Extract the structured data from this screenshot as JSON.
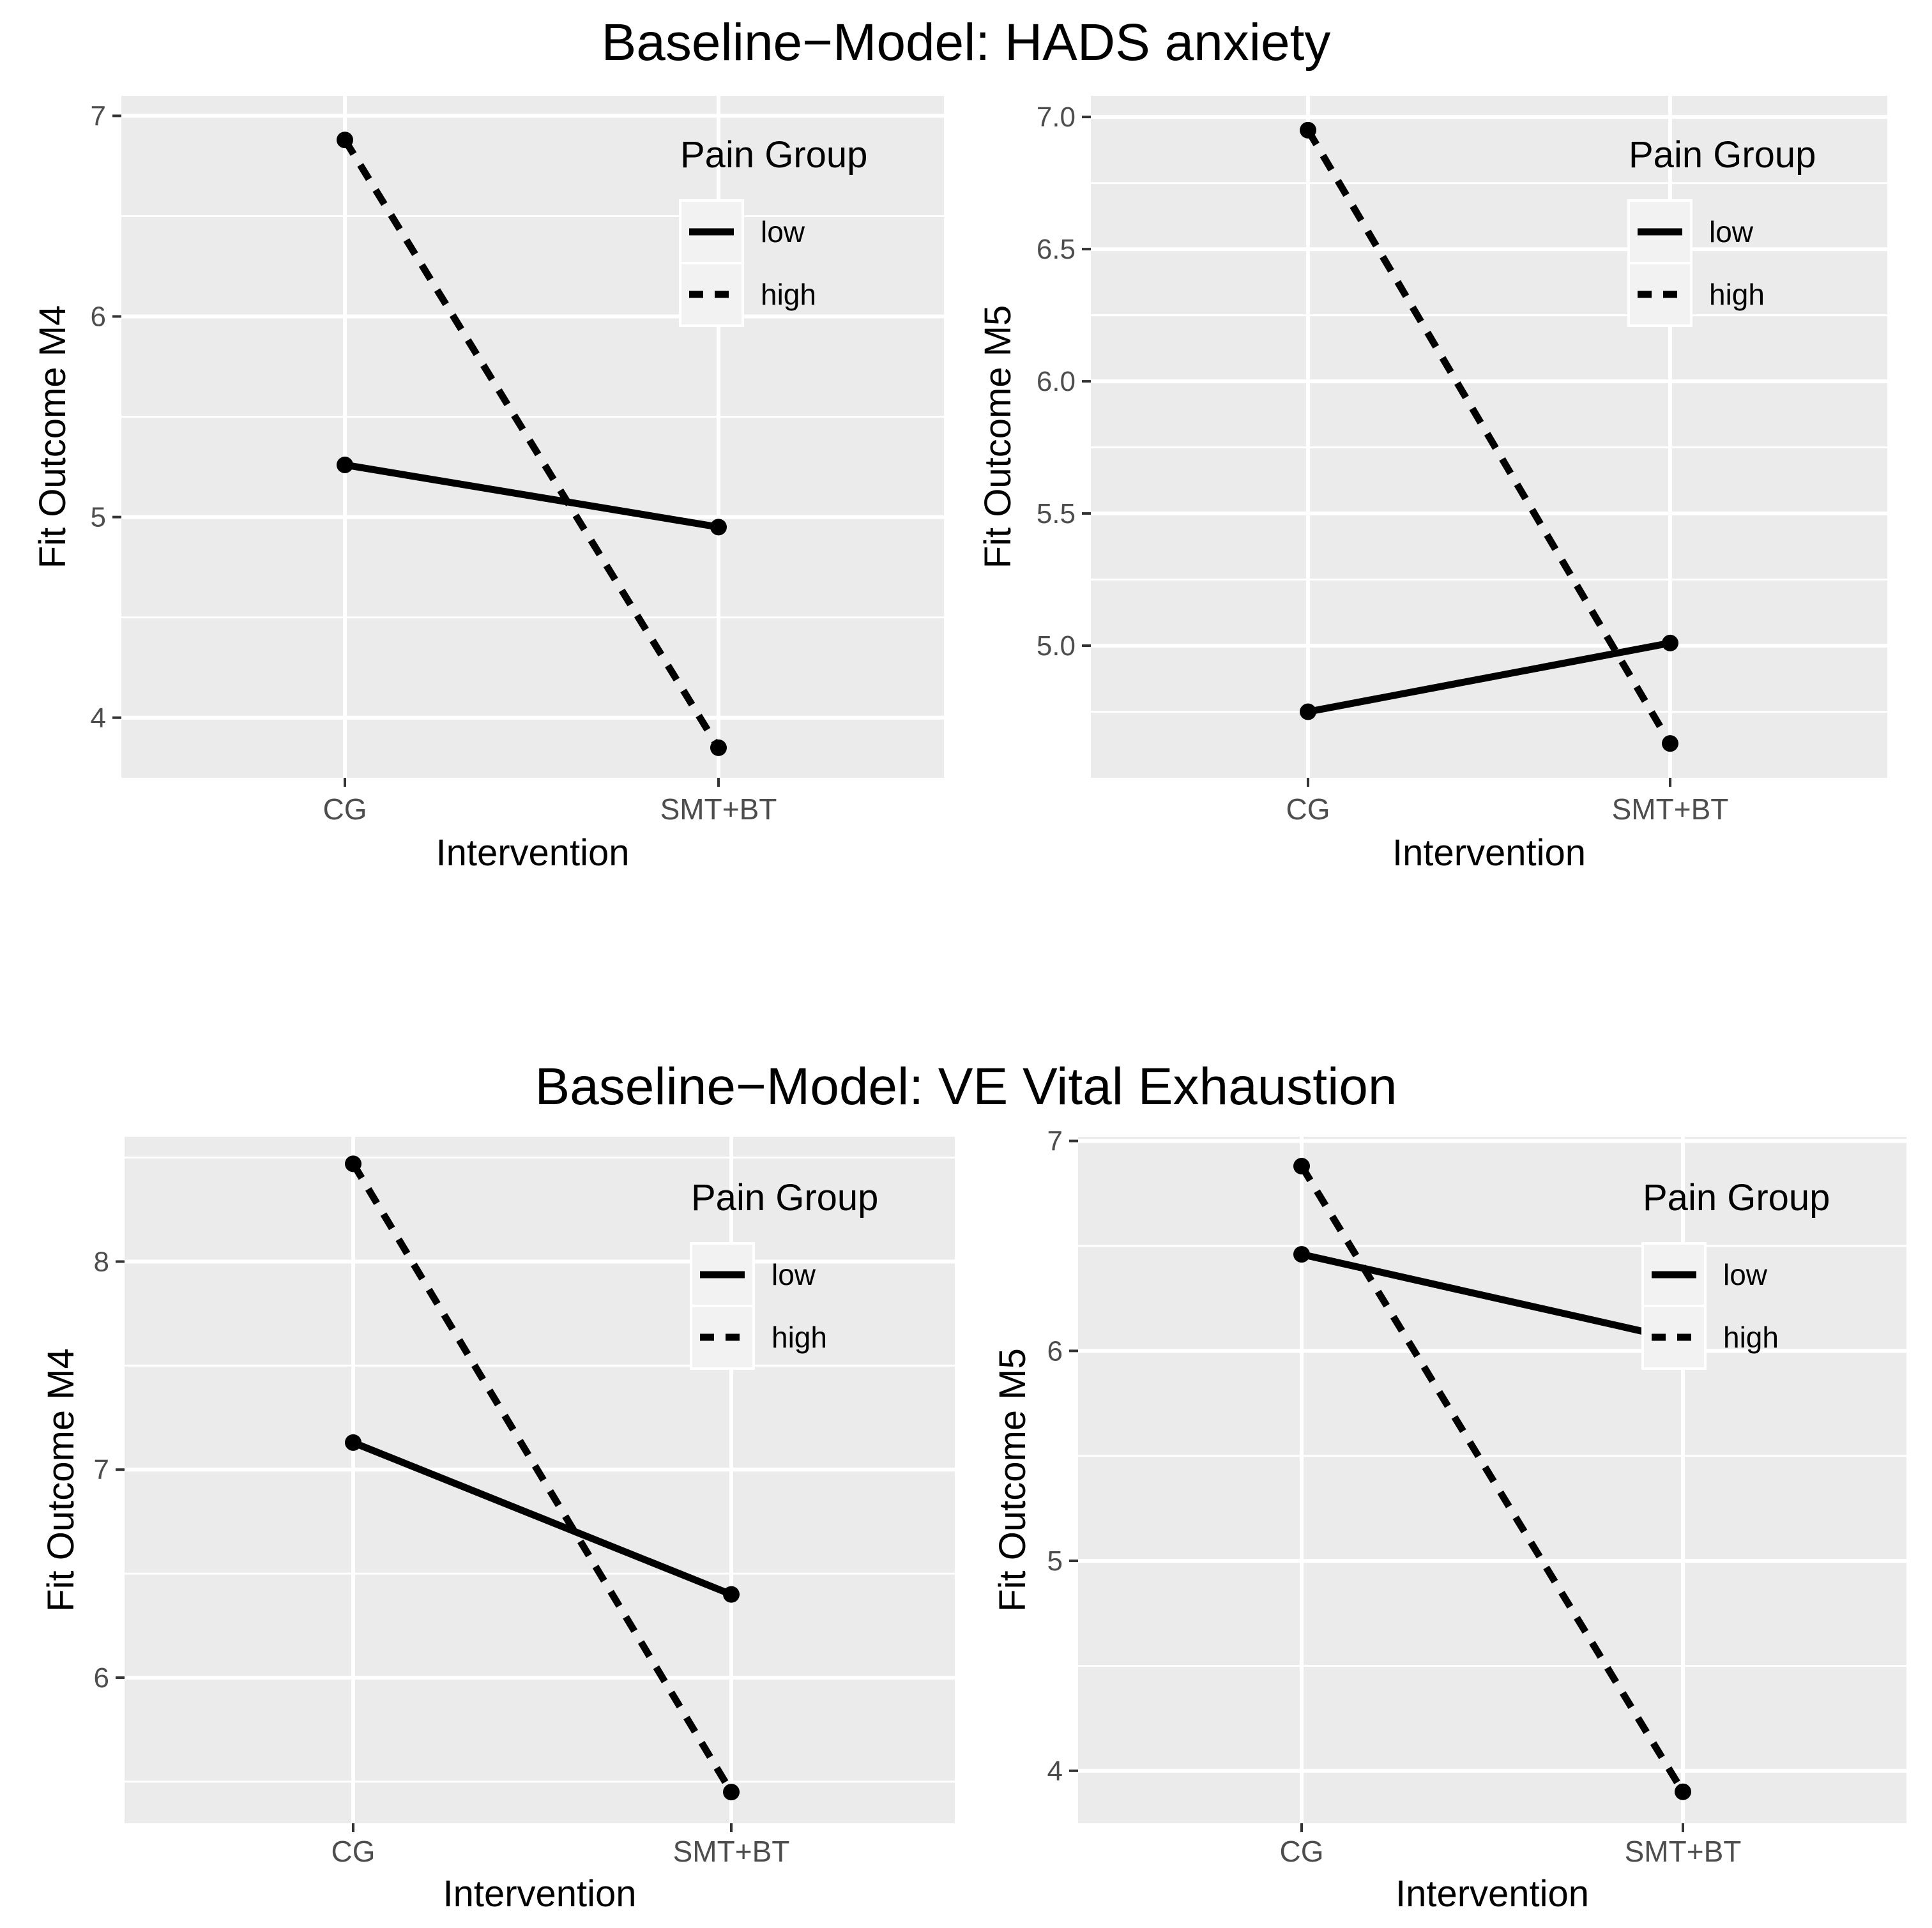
{
  "row_titles": [
    "Baseline−Model: HADS anxiety",
    "Baseline−Model: VE Vital Exhaustion"
  ],
  "chart_data": [
    {
      "type": "line",
      "title": "",
      "xlabel": "Intervention",
      "ylabel": "Fit Outcome M4",
      "categories": [
        "CG",
        "SMT+BT"
      ],
      "yticks": [
        "4",
        "5",
        "6",
        "7"
      ],
      "ylim": [
        3.7,
        7.1
      ],
      "legend": {
        "title": "Pain Group",
        "placement": "top-right"
      },
      "series": [
        {
          "name": "low",
          "linetype": "solid",
          "values": [
            5.26,
            4.95
          ]
        },
        {
          "name": "high",
          "linetype": "dashed",
          "values": [
            6.88,
            3.85
          ]
        }
      ]
    },
    {
      "type": "line",
      "title": "",
      "xlabel": "Intervention",
      "ylabel": "Fit Outcome M5",
      "categories": [
        "CG",
        "SMT+BT"
      ],
      "yticks": [
        "5.0",
        "5.5",
        "6.0",
        "6.5",
        "7.0"
      ],
      "ylim": [
        4.5,
        7.08
      ],
      "legend": {
        "title": "Pain Group",
        "placement": "top-right"
      },
      "series": [
        {
          "name": "low",
          "linetype": "solid",
          "values": [
            4.75,
            5.01
          ]
        },
        {
          "name": "high",
          "linetype": "dashed",
          "values": [
            6.95,
            4.63
          ]
        }
      ]
    },
    {
      "type": "line",
      "title": "",
      "xlabel": "Intervention",
      "ylabel": "Fit Outcome M4",
      "categories": [
        "CG",
        "SMT+BT"
      ],
      "yticks": [
        "6",
        "7",
        "8"
      ],
      "ylim": [
        5.3,
        8.6
      ],
      "legend": {
        "title": "Pain Group",
        "placement": "top-right"
      },
      "series": [
        {
          "name": "low",
          "linetype": "solid",
          "values": [
            7.13,
            6.4
          ]
        },
        {
          "name": "high",
          "linetype": "dashed",
          "values": [
            8.47,
            5.45
          ]
        }
      ]
    },
    {
      "type": "line",
      "title": "",
      "xlabel": "Intervention",
      "ylabel": "Fit Outcome M5",
      "categories": [
        "CG",
        "SMT+BT"
      ],
      "yticks": [
        "4",
        "5",
        "6",
        "7"
      ],
      "ylim": [
        3.75,
        7.02
      ],
      "legend": {
        "title": "Pain Group",
        "placement": "top-right"
      },
      "series": [
        {
          "name": "low",
          "linetype": "solid",
          "values": [
            6.46,
            6.05
          ]
        },
        {
          "name": "high",
          "linetype": "dashed",
          "values": [
            6.88,
            3.9
          ]
        }
      ]
    }
  ]
}
